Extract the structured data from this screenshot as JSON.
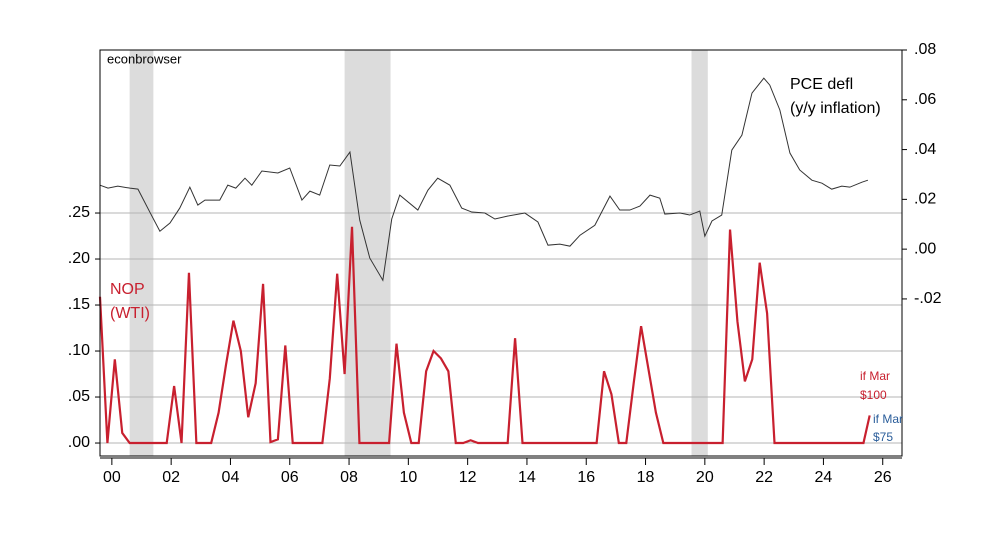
{
  "chart_data": {
    "type": "line",
    "watermark": "econbrowser",
    "xlim": [
      1999.6,
      2026.65
    ],
    "xticks": [
      {
        "value": 2000,
        "label": "00"
      },
      {
        "value": 2002,
        "label": "02"
      },
      {
        "value": 2004,
        "label": "04"
      },
      {
        "value": 2006,
        "label": "06"
      },
      {
        "value": 2008,
        "label": "08"
      },
      {
        "value": 2010,
        "label": "10"
      },
      {
        "value": 2012,
        "label": "12"
      },
      {
        "value": 2014,
        "label": "14"
      },
      {
        "value": 2016,
        "label": "16"
      },
      {
        "value": 2018,
        "label": "18"
      },
      {
        "value": 2020,
        "label": "20"
      },
      {
        "value": 2022,
        "label": "22"
      },
      {
        "value": 2024,
        "label": "24"
      },
      {
        "value": 2026,
        "label": "26"
      }
    ],
    "ylim": [
      -0.0141,
      0.4272
    ],
    "yticks": [
      {
        "value": 0,
        "label": ".00"
      },
      {
        "value": 0.05,
        "label": ".05"
      },
      {
        "value": 0.1,
        "label": ".10"
      },
      {
        "value": 0.15,
        "label": ".15"
      },
      {
        "value": 0.2,
        "label": ".20"
      },
      {
        "value": 0.25,
        "label": ".25"
      }
    ],
    "y2lim": [
      -0.0831,
      0.08
    ],
    "y2ticks": [
      {
        "value": -0.02,
        "label": "-.02"
      },
      {
        "value": 0,
        "label": ".00"
      },
      {
        "value": 0.02,
        "label": ".02"
      },
      {
        "value": 0.04,
        "label": ".04"
      },
      {
        "value": 0.06,
        "label": ".06"
      },
      {
        "value": 0.08,
        "label": ".08"
      }
    ],
    "grid": true,
    "shading_color": "#dcdcdc",
    "shading": [
      [
        2000.6,
        2001.4
      ],
      [
        2007.85,
        2009.4
      ],
      [
        2019.55,
        2020.1
      ]
    ],
    "series": [
      {
        "name": "NOP",
        "name2": "(WTI)",
        "color": "#c8202f",
        "axis": "y",
        "x": [
          1999.6,
          1999.85,
          2000.1,
          2000.35,
          2000.6,
          2001.85,
          2002.1,
          2002.35,
          2002.6,
          2002.85,
          2003.35,
          2003.6,
          2003.85,
          2004.1,
          2004.35,
          2004.6,
          2004.85,
          2005.1,
          2005.35,
          2005.6,
          2005.85,
          2006.1,
          2007.1,
          2007.35,
          2007.6,
          2007.85,
          2008.1,
          2008.35,
          2009.35,
          2009.6,
          2009.85,
          2010.1,
          2010.35,
          2010.6,
          2010.85,
          2011.1,
          2011.35,
          2011.6,
          2011.85,
          2012.1,
          2012.35,
          2013.35,
          2013.6,
          2013.85,
          2016.35,
          2016.6,
          2016.85,
          2017.1,
          2017.35,
          2017.6,
          2017.85,
          2018.1,
          2018.35,
          2018.6,
          2020.6,
          2020.85,
          2021.1,
          2021.35,
          2021.6,
          2021.85,
          2022.1,
          2022.35,
          2025.35,
          2025.56
        ],
        "values": [
          0.159,
          0,
          0.091,
          0.011,
          0,
          0,
          0.062,
          0,
          0.185,
          0,
          0,
          0.033,
          0.085,
          0.133,
          0.1,
          0.028,
          0.065,
          0.173,
          0.001,
          0.004,
          0.106,
          0,
          0,
          0.07,
          0.184,
          0.075,
          0.235,
          0,
          0,
          0.108,
          0.033,
          0,
          0,
          0.078,
          0.1,
          0.092,
          0.078,
          0,
          0,
          0.003,
          0,
          0,
          0.114,
          0,
          0,
          0.078,
          0.053,
          0,
          0,
          0.065,
          0.127,
          0.08,
          0.033,
          0,
          0,
          0.232,
          0.132,
          0.067,
          0.091,
          0.196,
          0.141,
          0,
          0,
          0.03
        ]
      },
      {
        "name": "PCE defl",
        "name2": "(y/y inflation)",
        "color": "#333333",
        "axis": "y2",
        "x": [
          1999.6,
          1999.87,
          2000.2,
          2000.61,
          2000.88,
          2001.28,
          2001.62,
          2001.96,
          2002.29,
          2002.63,
          2002.9,
          2003.14,
          2003.64,
          2003.91,
          2004.18,
          2004.49,
          2004.72,
          2005.06,
          2005.6,
          2006.0,
          2006.41,
          2006.68,
          2007.01,
          2007.35,
          2007.69,
          2008.03,
          2008.36,
          2008.7,
          2009.14,
          2009.44,
          2009.71,
          2010.32,
          2010.66,
          2010.99,
          2011.4,
          2011.8,
          2012.14,
          2012.58,
          2012.92,
          2013.36,
          2013.93,
          2014.37,
          2014.71,
          2015.11,
          2015.45,
          2015.79,
          2016.29,
          2016.8,
          2017.13,
          2017.47,
          2017.81,
          2018.15,
          2018.48,
          2018.65,
          2019.16,
          2019.49,
          2019.83,
          2020.0,
          2020.24,
          2020.57,
          2020.91,
          2021.25,
          2021.59,
          2021.99,
          2022.19,
          2022.53,
          2022.87,
          2023.2,
          2023.61,
          2023.95,
          2024.28,
          2024.62,
          2024.89,
          2025.3,
          2025.5
        ],
        "values": [
          0.0257,
          0.0245,
          0.0253,
          0.0245,
          0.0241,
          0.0149,
          0.0072,
          0.0105,
          0.0165,
          0.0249,
          0.0177,
          0.0197,
          0.0197,
          0.0257,
          0.0245,
          0.0285,
          0.0257,
          0.0314,
          0.0306,
          0.0326,
          0.0197,
          0.0233,
          0.0217,
          0.0338,
          0.0334,
          0.039,
          0.0117,
          -0.0036,
          -0.0125,
          0.0121,
          0.0217,
          0.0157,
          0.0237,
          0.0285,
          0.0257,
          0.0165,
          0.0149,
          0.0145,
          0.0121,
          0.0133,
          0.0145,
          0.0109,
          0.0016,
          0.002,
          0.0012,
          0.0056,
          0.0096,
          0.0213,
          0.0157,
          0.0157,
          0.0173,
          0.0217,
          0.0205,
          0.0141,
          0.0145,
          0.0137,
          0.0153,
          0.0052,
          0.0113,
          0.0137,
          0.0398,
          0.0458,
          0.0627,
          0.0687,
          0.0659,
          0.0559,
          0.0386,
          0.0318,
          0.0277,
          0.0265,
          0.0241,
          0.0253,
          0.0249,
          0.0269,
          0.0277
        ]
      }
    ],
    "annotations": [
      {
        "line1": "if Mar",
        "line2": "$100",
        "color": "#c8202f"
      },
      {
        "line1": "if Mar",
        "line2": "$75",
        "color": "#2a5d9a"
      }
    ]
  }
}
